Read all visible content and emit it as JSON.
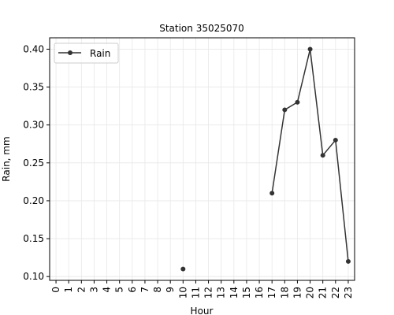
{
  "chart_data": {
    "type": "line",
    "title": "Station 35025070",
    "xlabel": "Hour",
    "ylabel": "Rain, mm",
    "x_ticks": [
      "0",
      "1",
      "2",
      "3",
      "4",
      "5",
      "6",
      "7",
      "8",
      "9",
      "10",
      "11",
      "12",
      "13",
      "14",
      "15",
      "16",
      "17",
      "18",
      "19",
      "20",
      "21",
      "22",
      "23"
    ],
    "y_ticks": [
      "0.10",
      "0.15",
      "0.20",
      "0.25",
      "0.30",
      "0.35",
      "0.40"
    ],
    "xlim": [
      -0.5,
      23.5
    ],
    "ylim": [
      0.095,
      0.415
    ],
    "grid": true,
    "legend_position": "top-left",
    "series": [
      {
        "name": "Rain",
        "color": "#333333",
        "points": [
          {
            "x": 10,
            "y": 0.11
          },
          {
            "x": 17,
            "y": 0.21
          },
          {
            "x": 18,
            "y": 0.32
          },
          {
            "x": 19,
            "y": 0.33
          },
          {
            "x": 20,
            "y": 0.4
          },
          {
            "x": 21,
            "y": 0.26
          },
          {
            "x": 22,
            "y": 0.28
          },
          {
            "x": 23,
            "y": 0.12
          }
        ],
        "segments": [
          [
            10
          ],
          [
            17,
            18,
            19,
            20,
            21,
            22,
            23
          ]
        ]
      }
    ]
  }
}
